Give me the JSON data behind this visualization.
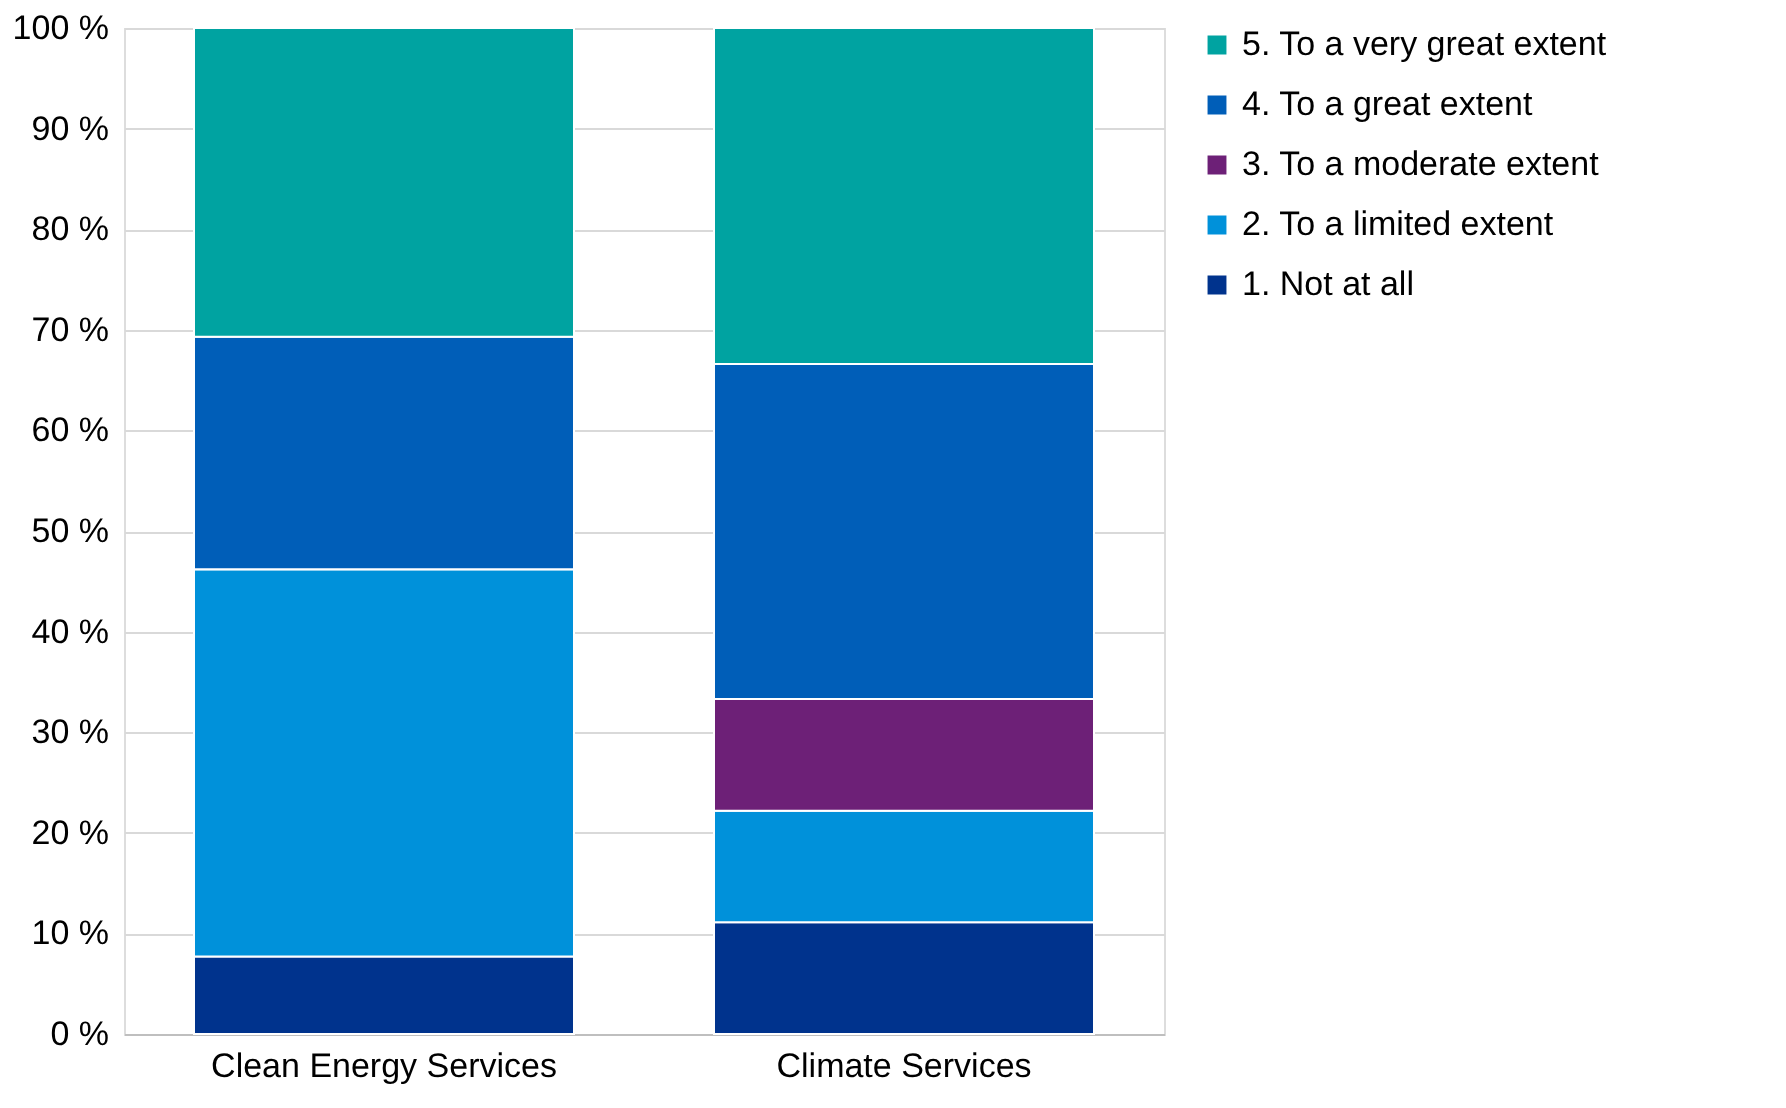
{
  "chart_data": {
    "type": "bar",
    "stacked": true,
    "categories": [
      "Clean Energy Services",
      "Climate Services"
    ],
    "series": [
      {
        "name": "1. Not at all",
        "color": "#00338d",
        "values": [
          7.7,
          11.1
        ]
      },
      {
        "name": "2. To a limited extent",
        "color": "#0091da",
        "values": [
          38.5,
          11.1
        ]
      },
      {
        "name": "3. To a moderate extent",
        "color": "#6d2077",
        "values": [
          0,
          11.1
        ]
      },
      {
        "name": "4. To a great extent",
        "color": "#005eb8",
        "values": [
          23.1,
          33.3
        ]
      },
      {
        "name": "5. To a very great extent",
        "color": "#00a3a1",
        "values": [
          30.7,
          33.4
        ]
      }
    ],
    "ylim": [
      0,
      100
    ],
    "yticks": [
      {
        "value": 0,
        "label": "0 %"
      },
      {
        "value": 10,
        "label": "10 %"
      },
      {
        "value": 20,
        "label": "20 %"
      },
      {
        "value": 30,
        "label": "30 %"
      },
      {
        "value": 40,
        "label": "40 %"
      },
      {
        "value": 50,
        "label": "50 %"
      },
      {
        "value": 60,
        "label": "60 %"
      },
      {
        "value": 70,
        "label": "70 %"
      },
      {
        "value": 80,
        "label": "80 %"
      },
      {
        "value": 90,
        "label": "90 %"
      },
      {
        "value": 100,
        "label": "100 %"
      }
    ],
    "grid": "y",
    "legend": "right"
  }
}
